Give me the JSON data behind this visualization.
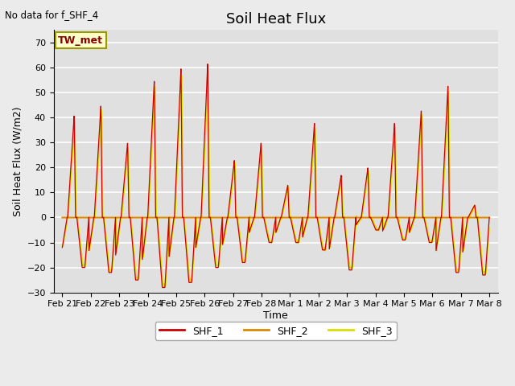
{
  "title": "Soil Heat Flux",
  "subtitle": "No data for f_SHF_4",
  "ylabel": "Soil Heat Flux (W/m2)",
  "xlabel": "Time",
  "annotation": "TW_met",
  "ylim": [
    -30,
    75
  ],
  "yticks": [
    -30,
    -20,
    -10,
    0,
    10,
    20,
    30,
    40,
    50,
    60,
    70
  ],
  "colors": {
    "SHF_1": "#cc0000",
    "SHF_2": "#dd8800",
    "SHF_3": "#dddd00"
  },
  "bg_color": "#ebebeb",
  "plot_bg_color": "#e0e0e0",
  "grid_color": "#ffffff",
  "title_fontsize": 13,
  "label_fontsize": 9,
  "tick_fontsize": 8,
  "x_tick_labels": [
    "Feb 21",
    "Feb 22",
    "Feb 23",
    "Feb 24",
    "Feb 25",
    "Feb 26",
    "Feb 27",
    "Feb 28",
    "Mar 1",
    "Mar 2",
    "Mar 3",
    "Mar 4",
    "Mar 5",
    "Mar 6",
    "Mar 7",
    "Mar 8"
  ],
  "pos_peaks": [
    41,
    45,
    30,
    55,
    60,
    62,
    23,
    30,
    13,
    38,
    17,
    20,
    38,
    43,
    53,
    5
  ],
  "neg_troughs": [
    -20,
    -22,
    -25,
    -28,
    -26,
    -20,
    -18,
    -10,
    -10,
    -13,
    -21,
    -5,
    -9,
    -10,
    -22,
    -23
  ]
}
